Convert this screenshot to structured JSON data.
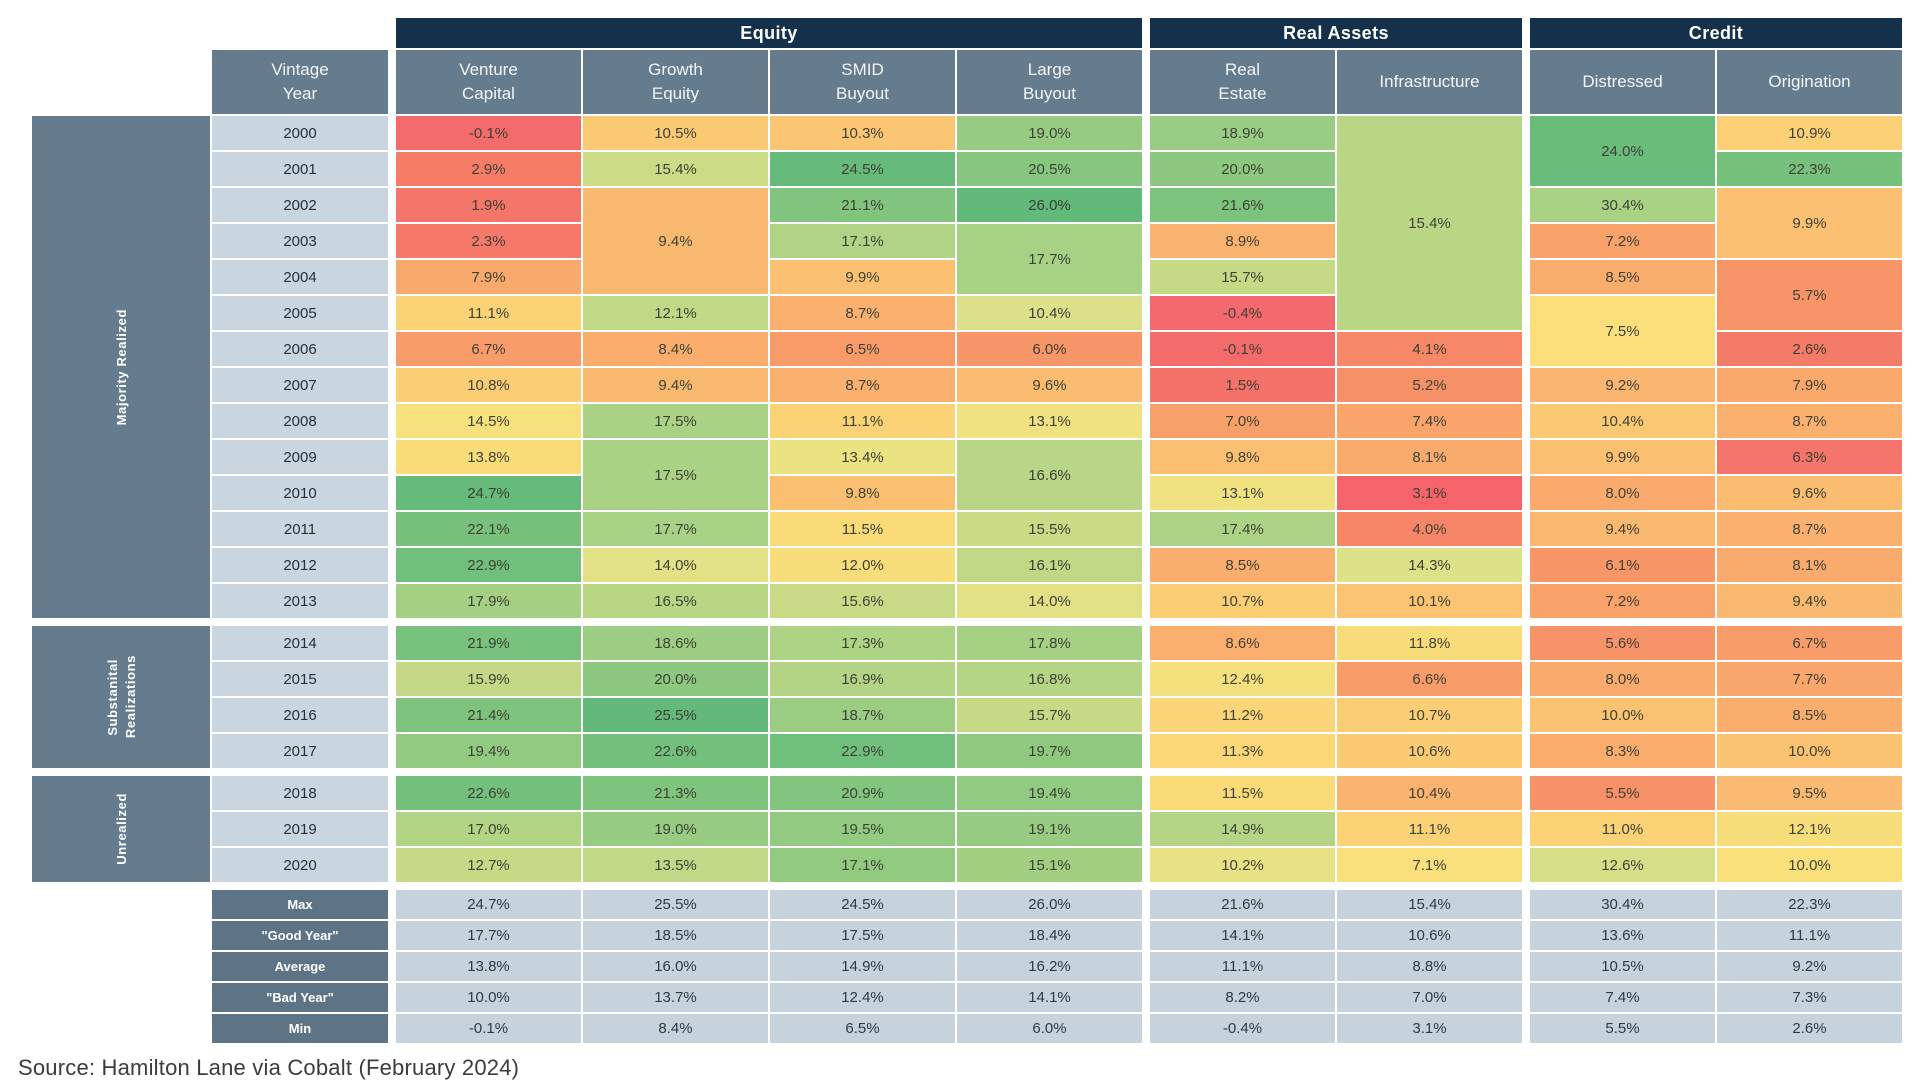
{
  "source": "Source: Hamilton Lane via Cobalt (February 2024)",
  "colors": {
    "header_navy": "#14304a",
    "header_slate": "#657c8e",
    "year_bg": "#c9d5df",
    "summary_label_bg": "#5d7486",
    "summary_value_bg": "#c6d2dc"
  },
  "chart_data": {
    "type": "heatmap",
    "title": "Private markets returns by vintage year and asset class",
    "vintage_header": "Vintage\nYear",
    "column_groups": [
      {
        "label": "Equity",
        "span": 4
      },
      {
        "label": "Real Assets",
        "span": 2
      },
      {
        "label": "Credit",
        "span": 2
      }
    ],
    "columns": [
      "Venture\nCapital",
      "Growth\nEquity",
      "SMID\nBuyout",
      "Large\nBuyout",
      "Real\nEstate",
      "Infrastructure",
      "Distressed",
      "Origination"
    ],
    "row_groups": [
      {
        "label": "Majority Realized",
        "count": 14
      },
      {
        "label": "Substanital\nRealizations",
        "count": 4
      },
      {
        "label": "Unrealized",
        "count": 3
      }
    ],
    "scale": [
      [
        -0.5,
        "#f4696d"
      ],
      [
        1.5,
        "#f4726a"
      ],
      [
        3,
        "#f57e68"
      ],
      [
        4.5,
        "#f68a67"
      ],
      [
        6,
        "#f79668"
      ],
      [
        7.5,
        "#f9a56b"
      ],
      [
        9,
        "#fab36f"
      ],
      [
        10.3,
        "#fbc673"
      ],
      [
        11.5,
        "#fbda78"
      ],
      [
        12.8,
        "#f4e27f"
      ],
      [
        14.2,
        "#dfe187"
      ],
      [
        15.6,
        "#c8da86"
      ],
      [
        17.2,
        "#aed385"
      ],
      [
        18.8,
        "#99cc82"
      ],
      [
        20.5,
        "#86c67e"
      ],
      [
        22.5,
        "#74c07c"
      ],
      [
        25,
        "#64ba7a"
      ],
      [
        31,
        "#52b277"
      ]
    ],
    "rows": [
      {
        "y": "2000",
        "c": [
          {
            "v": -0.1
          },
          {
            "v": 10.5
          },
          {
            "v": 10.3
          },
          {
            "v": 19.0
          },
          {
            "v": 18.9
          },
          {
            "v": 15.4,
            "s": 6,
            "c": "#b9d685"
          },
          {
            "v": 24.0,
            "s": 2
          },
          {
            "v": 10.9
          }
        ]
      },
      {
        "y": "2001",
        "c": [
          {
            "v": 2.9
          },
          {
            "v": 15.4
          },
          {
            "v": 24.5
          },
          {
            "v": 20.5
          },
          {
            "v": 20.0
          },
          null,
          null,
          {
            "v": 22.3
          }
        ]
      },
      {
        "y": "2002",
        "c": [
          {
            "v": 1.9
          },
          {
            "v": 9.4,
            "s": 3
          },
          {
            "v": 21.1
          },
          {
            "v": 26.0
          },
          {
            "v": 21.6
          },
          null,
          {
            "v": 30.4,
            "c": "#a9d284"
          },
          {
            "v": 9.9,
            "s": 2
          }
        ]
      },
      {
        "y": "2003",
        "c": [
          {
            "v": 2.3
          },
          null,
          {
            "v": 17.1
          },
          {
            "v": 17.7,
            "s": 2
          },
          {
            "v": 8.9
          },
          null,
          {
            "v": 7.2
          },
          null
        ]
      },
      {
        "y": "2004",
        "c": [
          {
            "v": 7.9
          },
          null,
          {
            "v": 9.9
          },
          null,
          {
            "v": 15.7
          },
          null,
          {
            "v": 8.5
          },
          {
            "v": 5.7,
            "s": 2
          }
        ]
      },
      {
        "y": "2005",
        "c": [
          {
            "v": 11.1
          },
          {
            "v": 12.1,
            "c": "#c0d987"
          },
          {
            "v": 8.7
          },
          {
            "v": 10.4,
            "c": "#dce08a"
          },
          {
            "v": -0.4
          },
          null,
          {
            "v": 7.5,
            "s": 2,
            "c": "#fbdf7a"
          },
          null
        ]
      },
      {
        "y": "2006",
        "c": [
          {
            "v": 6.7
          },
          {
            "v": 8.4
          },
          {
            "v": 6.5
          },
          {
            "v": 6.0
          },
          {
            "v": -0.1
          },
          {
            "v": 4.1
          },
          null,
          {
            "v": 2.6
          }
        ]
      },
      {
        "y": "2007",
        "c": [
          {
            "v": 10.8
          },
          {
            "v": 9.4
          },
          {
            "v": 8.7
          },
          {
            "v": 9.6
          },
          {
            "v": 1.5
          },
          {
            "v": 5.2
          },
          {
            "v": 9.2
          },
          {
            "v": 7.9
          }
        ]
      },
      {
        "y": "2008",
        "c": [
          {
            "v": 14.5,
            "c": "#f7e17c"
          },
          {
            "v": 17.5
          },
          {
            "v": 11.1
          },
          {
            "v": 13.1
          },
          {
            "v": 7.0
          },
          {
            "v": 7.4
          },
          {
            "v": 10.4
          },
          {
            "v": 8.7
          }
        ]
      },
      {
        "y": "2009",
        "c": [
          {
            "v": 13.8,
            "c": "#fadc79"
          },
          {
            "v": 17.5,
            "s": 2
          },
          {
            "v": 13.4
          },
          {
            "v": 16.6,
            "s": 2
          },
          {
            "v": 9.8
          },
          {
            "v": 8.1
          },
          {
            "v": 9.9
          },
          {
            "v": 6.3,
            "c": "#f5746b"
          }
        ]
      },
      {
        "y": "2010",
        "c": [
          {
            "v": 24.7
          },
          null,
          {
            "v": 9.8
          },
          null,
          {
            "v": 13.1
          },
          {
            "v": 3.1,
            "c": "#f4646a"
          },
          {
            "v": 8.0
          },
          {
            "v": 9.6
          }
        ]
      },
      {
        "y": "2011",
        "c": [
          {
            "v": 22.1
          },
          {
            "v": 17.7
          },
          {
            "v": 11.5
          },
          {
            "v": 15.5
          },
          {
            "v": 17.4
          },
          {
            "v": 4.0
          },
          {
            "v": 9.4
          },
          {
            "v": 8.7
          }
        ]
      },
      {
        "y": "2012",
        "c": [
          {
            "v": 22.9
          },
          {
            "v": 14.0
          },
          {
            "v": 12.0
          },
          {
            "v": 16.1
          },
          {
            "v": 8.5
          },
          {
            "v": 14.3
          },
          {
            "v": 6.1
          },
          {
            "v": 8.1
          }
        ]
      },
      {
        "y": "2013",
        "c": [
          {
            "v": 17.9
          },
          {
            "v": 16.5
          },
          {
            "v": 15.6
          },
          {
            "v": 14.0
          },
          {
            "v": 10.7
          },
          {
            "v": 10.1
          },
          {
            "v": 7.2
          },
          {
            "v": 9.4
          }
        ]
      },
      {
        "y": "2014",
        "c": [
          {
            "v": 21.9
          },
          {
            "v": 18.6
          },
          {
            "v": 17.3
          },
          {
            "v": 17.8
          },
          {
            "v": 8.6
          },
          {
            "v": 11.8
          },
          {
            "v": 5.6
          },
          {
            "v": 6.7
          }
        ]
      },
      {
        "y": "2015",
        "c": [
          {
            "v": 15.9
          },
          {
            "v": 20.0
          },
          {
            "v": 16.9
          },
          {
            "v": 16.8
          },
          {
            "v": 12.4
          },
          {
            "v": 6.6
          },
          {
            "v": 8.0
          },
          {
            "v": 7.7
          }
        ]
      },
      {
        "y": "2016",
        "c": [
          {
            "v": 21.4
          },
          {
            "v": 25.5
          },
          {
            "v": 18.7
          },
          {
            "v": 15.7
          },
          {
            "v": 11.2
          },
          {
            "v": 10.7
          },
          {
            "v": 10.0
          },
          {
            "v": 8.5
          }
        ]
      },
      {
        "y": "2017",
        "c": [
          {
            "v": 19.4
          },
          {
            "v": 22.6
          },
          {
            "v": 22.9
          },
          {
            "v": 19.7
          },
          {
            "v": 11.3
          },
          {
            "v": 10.6
          },
          {
            "v": 8.3
          },
          {
            "v": 10.0
          }
        ]
      },
      {
        "y": "2018",
        "c": [
          {
            "v": 22.6
          },
          {
            "v": 21.3
          },
          {
            "v": 20.9
          },
          {
            "v": 19.4
          },
          {
            "v": 11.5
          },
          {
            "v": 10.4,
            "c": "#fbb46f"
          },
          {
            "v": 5.5
          },
          {
            "v": 9.5
          }
        ]
      },
      {
        "y": "2019",
        "c": [
          {
            "v": 17.0
          },
          {
            "v": 19.0
          },
          {
            "v": 19.5
          },
          {
            "v": 19.1
          },
          {
            "v": 14.9,
            "c": "#b4d585"
          },
          {
            "v": 11.1
          },
          {
            "v": 11.0
          },
          {
            "v": 12.1
          }
        ]
      },
      {
        "y": "2020",
        "c": [
          {
            "v": 12.7,
            "c": "#c6da86"
          },
          {
            "v": 13.5,
            "c": "#c0d986"
          },
          {
            "v": 17.1,
            "c": "#92ca80"
          },
          {
            "v": 15.1,
            "c": "#a3cf82"
          },
          {
            "v": 10.2,
            "c": "#e9e285"
          },
          {
            "v": 7.1,
            "c": "#f9e07c"
          },
          {
            "v": 12.6,
            "c": "#d6de88"
          },
          {
            "v": 10.0,
            "c": "#f9e07b"
          }
        ]
      }
    ],
    "summary": [
      {
        "label": "Max",
        "values": [
          24.7,
          25.5,
          24.5,
          26.0,
          21.6,
          15.4,
          30.4,
          22.3
        ]
      },
      {
        "label": "\"Good Year\"",
        "values": [
          17.7,
          18.5,
          17.5,
          18.4,
          14.1,
          10.6,
          13.6,
          11.1
        ]
      },
      {
        "label": "Average",
        "values": [
          13.8,
          16.0,
          14.9,
          16.2,
          11.1,
          8.8,
          10.5,
          9.2
        ]
      },
      {
        "label": "\"Bad Year\"",
        "values": [
          10.0,
          13.7,
          12.4,
          14.1,
          8.2,
          7.0,
          7.4,
          7.3
        ]
      },
      {
        "label": "Min",
        "values": [
          -0.1,
          8.4,
          6.5,
          6.0,
          -0.4,
          3.1,
          5.5,
          2.6
        ]
      }
    ]
  }
}
